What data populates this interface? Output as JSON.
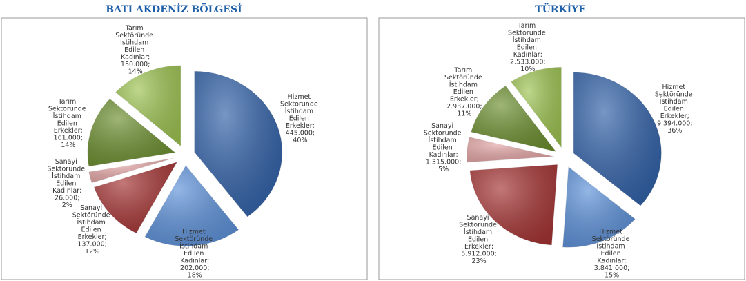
{
  "chart_data": [
    {
      "type": "pie",
      "title": "BATI AKDENİZ BÖLGESİ",
      "categories": [
        "Hizmet Sektöründe İstihdam Edilen Erkekler;",
        "Hizmet Sektöründe İstihdam Edilen Kadınlar;",
        "Sanayi Sektöründe İstihdam Edilen Erkekler;",
        "Sanayi Sektöründe İstihdam Edilen Kadınlar;",
        "Tarım Sektöründe İstihdam Edilen Erkekler;",
        "Tarım Sektöründe İstihdam Edilen Kadınlar;"
      ],
      "values": [
        445000,
        202000,
        137000,
        26000,
        161000,
        150000
      ],
      "value_labels": [
        "445.000;",
        "202.000;",
        "137.000;",
        "26.000;",
        "161.000;",
        "150.000;"
      ],
      "percents": [
        40,
        18,
        12,
        2,
        14,
        14
      ],
      "percent_labels": [
        "40%",
        "18%",
        "12%",
        "2%",
        "14%",
        "14%"
      ],
      "colors": [
        "#2d5ea6",
        "#5a8fd8",
        "#a33030",
        "#e3a3a3",
        "#6a8d2c",
        "#9cc24f"
      ]
    },
    {
      "type": "pie",
      "title": "TÜRKİYE",
      "categories": [
        "Hizmet Sektöründe İstihdam Edilen Erkekler;",
        "Hizmet Sektöründe İstihdam Edilen Kadınlar;",
        "Sanayi Sektöründe İstihdam Edilen Erkekler;",
        "Sanayi Sektöründe İstihdam Edilen Kadınlar;",
        "Tarım Sektöründe İstihdam Edilen Erkekler;",
        "Tarım Sektöründe İstihdam Edilen Kadınlar;"
      ],
      "values": [
        9394000,
        3841000,
        5912000,
        1315000,
        2937000,
        2533000
      ],
      "value_labels": [
        "9.394.000;",
        "3.841.000;",
        "5.912.000;",
        "1.315.000;",
        "2.937.000;",
        "2.533.000;"
      ],
      "percents": [
        36,
        15,
        23,
        5,
        11,
        10
      ],
      "percent_labels": [
        "36%",
        "15%",
        "23%",
        "5%",
        "11%",
        "10%"
      ],
      "colors": [
        "#2d5ea6",
        "#5a8fd8",
        "#a33030",
        "#e3a3a3",
        "#6a8d2c",
        "#9cc24f"
      ]
    }
  ]
}
